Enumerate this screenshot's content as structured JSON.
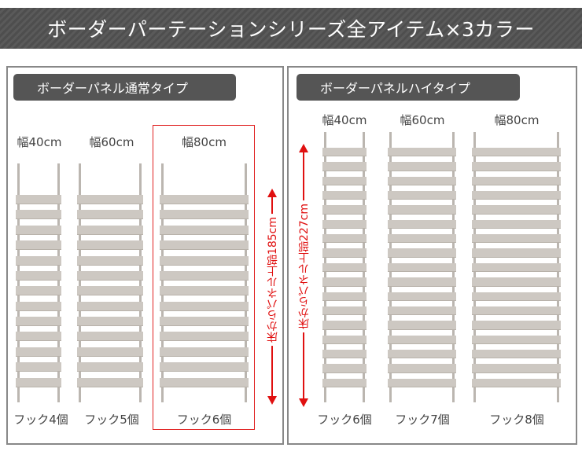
{
  "title": "ボーダーパーテーションシリーズ全アイテム×3カラー",
  "normal": {
    "heading": "ボーダーパネル通常タイプ",
    "height_note": "床からパネル上部185cm",
    "items": [
      {
        "width": "幅40cm",
        "hooks": "フック4個"
      },
      {
        "width": "幅60cm",
        "hooks": "フック5個"
      },
      {
        "width": "幅80cm",
        "hooks": "フック6個"
      }
    ]
  },
  "high": {
    "heading": "ボーダーパネルハイタイプ",
    "height_note": "床からパネル上部227cm",
    "items": [
      {
        "width": "幅40cm",
        "hooks": "フック6個"
      },
      {
        "width": "幅60cm",
        "hooks": "フック7個"
      },
      {
        "width": "幅80cm",
        "hooks": "フック8個"
      }
    ]
  },
  "colors": {
    "highlight": "#e02020",
    "panel": "#cdc8c2",
    "header": "#555555"
  }
}
